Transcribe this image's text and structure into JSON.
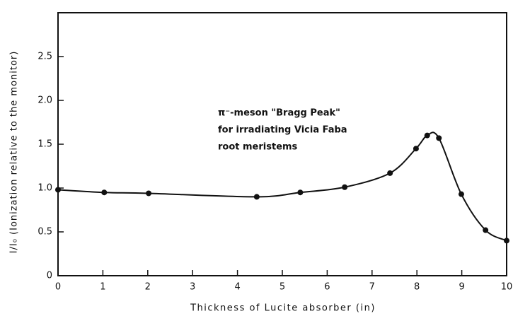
{
  "chart_data": {
    "type": "line",
    "annotation": [
      "π⁻-meson \"Bragg Peak\"",
      "for irradiating Vicia Faba",
      "root meristems"
    ],
    "xlabel": "Thickness of Lucite absorber (in)",
    "ylabel": "I/I₀ (Ionization relative to the monitor)",
    "x": [
      0,
      1.03,
      2.02,
      4.43,
      5.4,
      6.39,
      7.4,
      7.98,
      8.23,
      8.49,
      8.99,
      9.53,
      10
    ],
    "series": [
      {
        "color": "#111111",
        "values": [
          0.98,
          0.95,
          0.94,
          0.9,
          0.95,
          1.01,
          1.17,
          1.45,
          1.6,
          1.57,
          0.93,
          0.52,
          0.4
        ]
      }
    ],
    "xlim": [
      0,
      10
    ],
    "xticks": [
      0,
      1,
      2,
      3,
      4,
      5,
      6,
      7,
      8,
      9,
      10
    ],
    "ylim": [
      0,
      3
    ],
    "yticks": [
      0,
      0.5,
      {
        "value": 1,
        "label": "1.0"
      },
      1.5,
      {
        "value": 2,
        "label": "2.0"
      },
      2.5
    ],
    "grid": false
  }
}
